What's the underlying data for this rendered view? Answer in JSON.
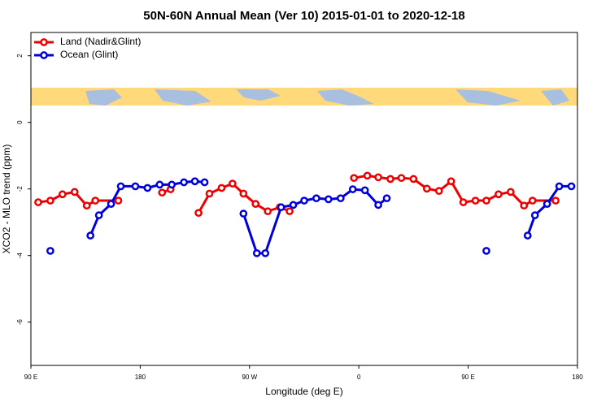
{
  "chart_data": {
    "type": "line",
    "title": "50N-60N Annual Mean (Ver 10)   2015-01-01 to 2020-12-18",
    "xlabel": "Longitude (deg E)",
    "ylabel": "XCO2 - MLO trend (ppm)",
    "xlim": [
      90,
      540
    ],
    "ylim": [
      -7.3,
      2.7
    ],
    "xticks": [
      {
        "value": 90,
        "label": "90 E"
      },
      {
        "value": 180,
        "label": "180"
      },
      {
        "value": 270,
        "label": "90 W"
      },
      {
        "value": 360,
        "label": "0"
      },
      {
        "value": 450,
        "label": "90 E"
      },
      {
        "value": 540,
        "label": "180"
      }
    ],
    "yticks": [
      -6,
      -4,
      -2,
      0,
      2
    ],
    "legend": "top-left",
    "series": [
      {
        "name": "Land (Nadir&Glint)",
        "color": "#ee0000",
        "x": [
          96,
          106,
          116,
          126,
          136,
          143,
          162,
          null,
          198,
          205,
          null,
          228,
          237,
          247,
          256,
          265,
          275,
          285,
          295,
          303,
          null,
          356,
          367,
          376,
          386,
          395,
          405,
          416,
          426,
          436,
          446,
          456,
          465,
          475,
          485,
          496,
          503,
          522
        ],
        "values": [
          -2.4,
          -2.35,
          -2.16,
          -2.09,
          -2.5,
          -2.35,
          -2.35,
          null,
          -2.11,
          -2.01,
          null,
          -2.72,
          -2.14,
          -1.97,
          -1.84,
          -2.14,
          -2.45,
          -2.67,
          -2.55,
          -2.67,
          null,
          -1.67,
          -1.6,
          -1.65,
          -1.7,
          -1.67,
          -1.7,
          -1.99,
          -2.06,
          -1.77,
          -2.4,
          -2.35,
          -2.35,
          -2.16,
          -2.09,
          -2.5,
          -2.35,
          -2.35
        ]
      },
      {
        "name": "Ocean (Glint)",
        "color": "#0000dd",
        "x": [
          106,
          null,
          139,
          146,
          156,
          164,
          176,
          186,
          196,
          206,
          216,
          225,
          233,
          null,
          265,
          276,
          283,
          296,
          306,
          315,
          325,
          335,
          345,
          355,
          365,
          376,
          383,
          null,
          465,
          null,
          499,
          505,
          515,
          525,
          535
        ],
        "values": [
          -3.86,
          null,
          -3.4,
          -2.79,
          -2.45,
          -1.92,
          -1.92,
          -1.97,
          -1.87,
          -1.87,
          -1.8,
          -1.77,
          -1.8,
          null,
          -2.74,
          -3.93,
          -3.93,
          -2.55,
          -2.48,
          -2.35,
          -2.28,
          -2.31,
          -2.28,
          -2.01,
          -2.04,
          -2.48,
          -2.28,
          null,
          -3.86,
          null,
          -3.4,
          -2.79,
          -2.45,
          -1.92,
          -1.92
        ]
      }
    ]
  }
}
